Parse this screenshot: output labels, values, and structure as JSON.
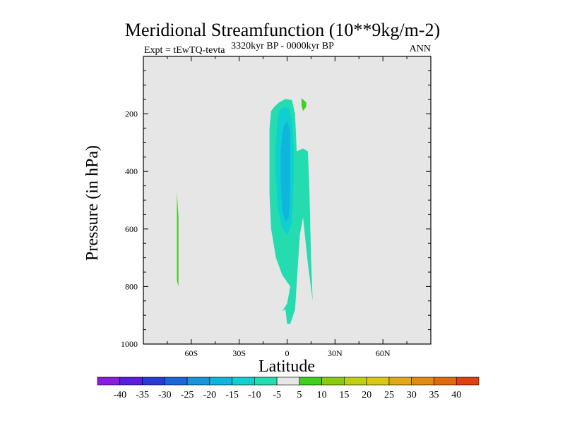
{
  "chart_data": {
    "type": "contour",
    "title": "Meridional Streamfunction (10**9kg/m-2)",
    "subtitle_left": "Expt = tEwTQ-tevta",
    "subtitle_center": "3320kyr BP - 0000kyr BP",
    "subtitle_right": "ANN",
    "xlabel": "Latitude",
    "ylabel": "Pressure (in hPa)",
    "xlim": [
      -90,
      90
    ],
    "ylim": [
      0,
      1000
    ],
    "y_inverted": true,
    "x_ticks": [
      {
        "value": -60,
        "label": "60S"
      },
      {
        "value": -30,
        "label": "30S"
      },
      {
        "value": 0,
        "label": "0"
      },
      {
        "value": 30,
        "label": "30N"
      },
      {
        "value": 60,
        "label": "60N"
      }
    ],
    "y_ticks": [
      {
        "value": 200,
        "label": "200"
      },
      {
        "value": 400,
        "label": "400"
      },
      {
        "value": 600,
        "label": "600"
      },
      {
        "value": 800,
        "label": "800"
      },
      {
        "value": 1000,
        "label": "1000"
      }
    ],
    "background_color": "#e6e6e6",
    "colorbar": {
      "labels": [
        "-40",
        "-35",
        "-30",
        "-25",
        "-20",
        "-15",
        "-10",
        "-5",
        "5",
        "10",
        "15",
        "20",
        "25",
        "30",
        "35",
        "40"
      ],
      "colors": [
        "#8a1de0",
        "#5a1ee0",
        "#2a3ad8",
        "#1e66d8",
        "#1a93d8",
        "#0fb6dc",
        "#10cfd0",
        "#24dcb0",
        "#e6e6e6",
        "#40d020",
        "#8acb10",
        "#c0d010",
        "#d9c814",
        "#e0aa14",
        "#e08a14",
        "#e06a10",
        "#e04010"
      ]
    },
    "regions": [
      {
        "level": -5,
        "color": "#24dcb0",
        "points": [
          [
            -8,
            175
          ],
          [
            -5,
            160
          ],
          [
            -1,
            148
          ],
          [
            3,
            152
          ],
          [
            5,
            200
          ],
          [
            6,
            330
          ],
          [
            10,
            320
          ],
          [
            13,
            330
          ],
          [
            14,
            470
          ],
          [
            15,
            700
          ],
          [
            16,
            850
          ],
          [
            13,
            720
          ],
          [
            10,
            560
          ],
          [
            8,
            620
          ],
          [
            6,
            790
          ],
          [
            5,
            880
          ],
          [
            2,
            930
          ],
          [
            0,
            930
          ],
          [
            -1,
            880
          ],
          [
            -3,
            885
          ],
          [
            0,
            860
          ],
          [
            2,
            800
          ],
          [
            -3,
            760
          ],
          [
            -7,
            700
          ],
          [
            -10,
            600
          ],
          [
            -11,
            480
          ],
          [
            -11,
            360
          ],
          [
            -11,
            250
          ],
          [
            -10,
            190
          ]
        ]
      },
      {
        "level": -10,
        "color": "#10cfd0",
        "points": [
          [
            -5,
            190
          ],
          [
            -2,
            175
          ],
          [
            1,
            180
          ],
          [
            3,
            220
          ],
          [
            4,
            300
          ],
          [
            4,
            450
          ],
          [
            3,
            580
          ],
          [
            0,
            620
          ],
          [
            -3,
            600
          ],
          [
            -6,
            520
          ],
          [
            -7,
            420
          ],
          [
            -7,
            300
          ],
          [
            -6,
            220
          ]
        ]
      },
      {
        "level": -15,
        "color": "#0fb6dc",
        "points": [
          [
            -2,
            240
          ],
          [
            0,
            225
          ],
          [
            2,
            260
          ],
          [
            2,
            360
          ],
          [
            2,
            480
          ],
          [
            1,
            560
          ],
          [
            -1,
            575
          ],
          [
            -3,
            540
          ],
          [
            -4,
            440
          ],
          [
            -4,
            330
          ],
          [
            -3,
            270
          ]
        ]
      },
      {
        "level": 5,
        "color": "#40d020",
        "points": [
          [
            9,
            145
          ],
          [
            12,
            160
          ],
          [
            12,
            175
          ],
          [
            10,
            190
          ],
          [
            9,
            170
          ]
        ]
      },
      {
        "level": 5,
        "color": "#40d020",
        "points": [
          [
            -69,
            470
          ],
          [
            -68,
            560
          ],
          [
            -68,
            680
          ],
          [
            -68,
            800
          ],
          [
            -69,
            780
          ],
          [
            -69,
            620
          ]
        ]
      }
    ]
  }
}
